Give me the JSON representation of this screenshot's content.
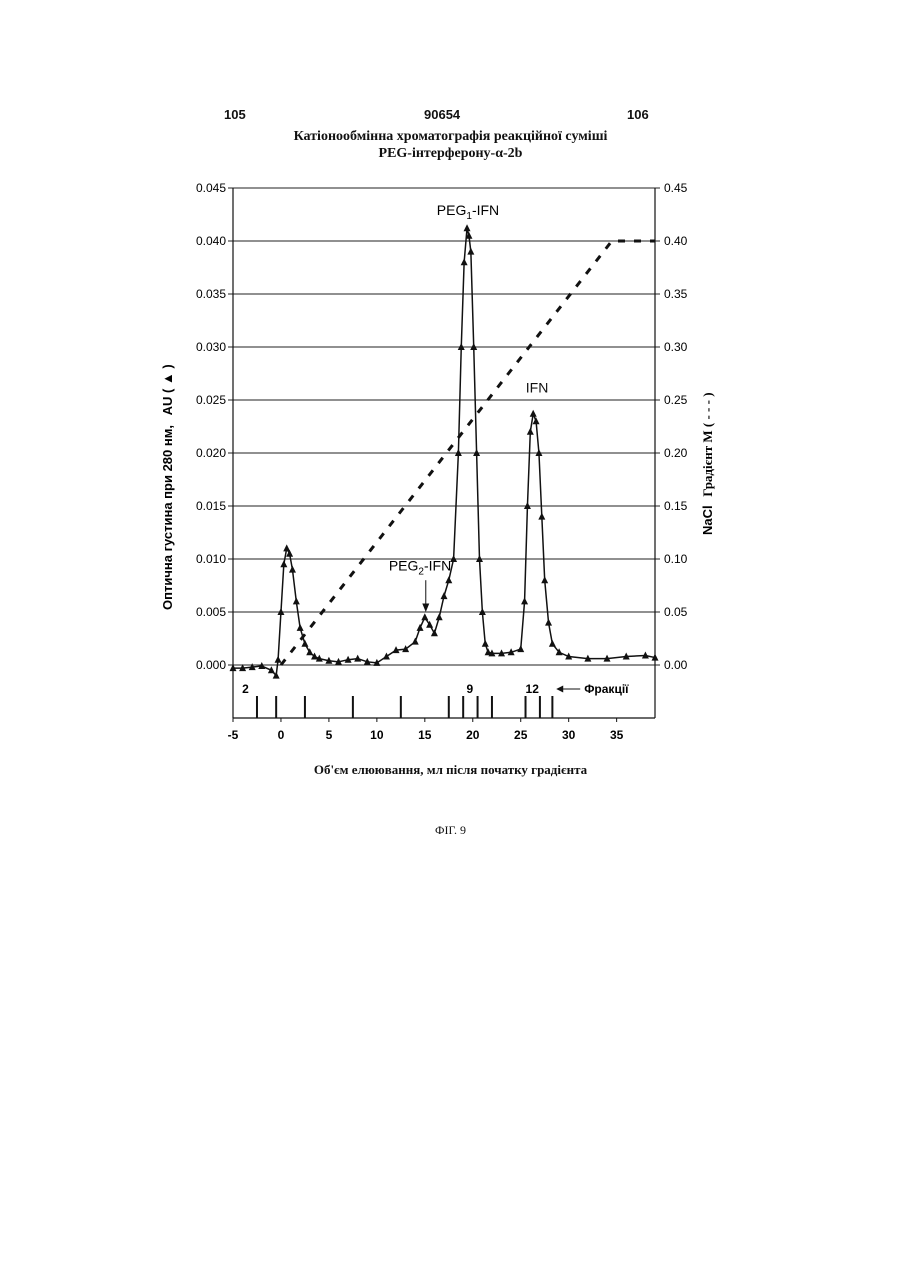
{
  "header": {
    "left_page": "105",
    "patent_number": "90654",
    "right_page": "106"
  },
  "figure_caption": "ФІГ. 9",
  "chart_data": {
    "type": "line",
    "title_line1": "Катіонообмінна хроматографія реакційної суміші",
    "title_line2": "PEG-інтерферону-α-2b",
    "xlabel": "Об'єм елюювання, мл після початку градієнта",
    "ylabel_left_text": "Оптична густина при 280 нм,",
    "ylabel_left_unit": "AU ( ▲ )",
    "ylabel_right_text": "Градієнт M ( - - - )",
    "ylabel_right_prefix": "NaCl",
    "xlim": [
      -5,
      39
    ],
    "ylim_left": [
      0,
      0.045
    ],
    "ylim_right": [
      0,
      0.45
    ],
    "x_ticks": [
      "-5",
      "0",
      "5",
      "10",
      "15",
      "20",
      "25",
      "30",
      "35"
    ],
    "y_ticks_left": [
      "0.000",
      "0.005",
      "0.010",
      "0.015",
      "0.020",
      "0.025",
      "0.030",
      "0.035",
      "0.040",
      "0.045"
    ],
    "y_ticks_right": [
      "0.00",
      "0.05",
      "0.10",
      "0.15",
      "0.20",
      "0.25",
      "0.30",
      "0.35",
      "0.40",
      "0.45"
    ],
    "grid": "horizontal",
    "annotations": {
      "peg1": {
        "main": "PEG",
        "sub": "1",
        "rest": "-IFN"
      },
      "peg2": {
        "main": "PEG",
        "sub": "2",
        "rest": "-IFN"
      },
      "ifn": "IFN",
      "fractions_label": "Фракції",
      "fraction_numbers": [
        "2",
        "9",
        "12"
      ]
    },
    "fraction_marks": [
      -2.5,
      -0.5,
      2.5,
      7.5,
      12.5,
      17.5,
      19,
      20.5,
      22,
      25.5,
      27,
      28.3
    ],
    "series": [
      {
        "name": "absorbance",
        "axis": "left",
        "marker": "triangle",
        "x": [
          -5,
          -4,
          -3,
          -2,
          -1,
          -0.5,
          -0.3,
          0,
          0.3,
          0.6,
          0.9,
          1.2,
          1.6,
          2,
          2.5,
          3,
          3.5,
          4,
          5,
          6,
          7,
          8,
          9,
          10,
          11,
          12,
          13,
          14,
          14.5,
          15,
          15.5,
          16,
          16.5,
          17,
          17.5,
          18,
          18.5,
          18.8,
          19.1,
          19.4,
          19.6,
          19.8,
          20.1,
          20.4,
          20.7,
          21,
          21.3,
          21.6,
          22,
          23,
          24,
          25,
          25.4,
          25.7,
          26,
          26.3,
          26.6,
          26.9,
          27.2,
          27.5,
          27.9,
          28.3,
          29,
          30,
          32,
          34,
          36,
          38,
          39
        ],
        "values": [
          -0.0003,
          -0.0003,
          -0.0002,
          -0.0001,
          -0.0005,
          -0.001,
          0.0005,
          0.005,
          0.0095,
          0.011,
          0.0105,
          0.009,
          0.006,
          0.0035,
          0.002,
          0.0012,
          0.0008,
          0.0006,
          0.0004,
          0.0003,
          0.0005,
          0.0006,
          0.0003,
          0.0002,
          0.0008,
          0.0014,
          0.0015,
          0.0022,
          0.0035,
          0.0045,
          0.0038,
          0.003,
          0.0045,
          0.0065,
          0.008,
          0.01,
          0.02,
          0.03,
          0.038,
          0.0412,
          0.0405,
          0.039,
          0.03,
          0.02,
          0.01,
          0.005,
          0.002,
          0.0012,
          0.0011,
          0.0011,
          0.0012,
          0.0015,
          0.006,
          0.015,
          0.022,
          0.0237,
          0.023,
          0.02,
          0.014,
          0.008,
          0.004,
          0.002,
          0.0012,
          0.0008,
          0.0006,
          0.0006,
          0.0008,
          0.0009,
          0.0007
        ]
      },
      {
        "name": "NaCl gradient",
        "axis": "right",
        "style": "dashed",
        "x": [
          0,
          34.5,
          39
        ],
        "values": [
          0.0,
          0.4,
          0.4
        ]
      }
    ]
  }
}
